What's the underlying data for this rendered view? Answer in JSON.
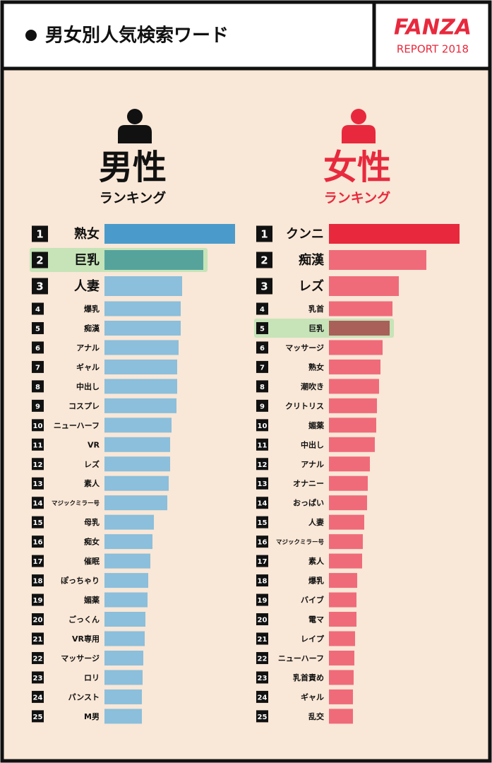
{
  "header": {
    "title": "男女別人気検索ワード",
    "brand": "FANZA",
    "report": "REPORT 2018"
  },
  "chart_data": [
    {
      "type": "bar",
      "title": "男性",
      "subtitle": "ランキング",
      "highlight_index": 1,
      "ranks": [
        1,
        2,
        3,
        4,
        5,
        6,
        7,
        8,
        9,
        10,
        11,
        12,
        13,
        14,
        15,
        16,
        17,
        18,
        19,
        20,
        21,
        22,
        23,
        24,
        25
      ],
      "categories": [
        "熟女",
        "巨乳",
        "人妻",
        "爆乳",
        "痴漢",
        "アナル",
        "ギャル",
        "中出し",
        "コスプレ",
        "ニューハーフ",
        "VR",
        "レズ",
        "素人",
        "マジックミラー号",
        "母乳",
        "痴女",
        "催眠",
        "ぽっちゃり",
        "媚薬",
        "ごっくん",
        "VR専用",
        "マッサージ",
        "ロリ",
        "パンスト",
        "M男"
      ],
      "values": [
        185,
        140,
        110,
        108,
        108,
        105,
        103,
        103,
        102,
        95,
        93,
        93,
        91,
        89,
        70,
        68,
        65,
        62,
        61,
        58,
        57,
        55,
        54,
        53,
        53
      ],
      "colors": [
        "#4a9bcb",
        "#56a39c",
        "#8bbfdb",
        "#8bbfdb",
        "#8bbfdb",
        "#8bbfdb",
        "#8bbfdb",
        "#8bbfdb",
        "#8bbfdb",
        "#8bbfdb",
        "#8bbfdb",
        "#8bbfdb",
        "#8bbfdb",
        "#8bbfdb",
        "#8bbfdb",
        "#8bbfdb",
        "#8bbfdb",
        "#8bbfdb",
        "#8bbfdb",
        "#8bbfdb",
        "#8bbfdb",
        "#8bbfdb",
        "#8bbfdb",
        "#8bbfdb",
        "#8bbfdb"
      ],
      "title_color": "#111111"
    },
    {
      "type": "bar",
      "title": "女性",
      "subtitle": "ランキング",
      "highlight_index": 4,
      "ranks": [
        1,
        2,
        3,
        4,
        5,
        6,
        7,
        8,
        9,
        10,
        11,
        12,
        13,
        14,
        15,
        16,
        17,
        18,
        19,
        20,
        21,
        22,
        23,
        24,
        25
      ],
      "categories": [
        "クンニ",
        "痴漢",
        "レズ",
        "乳首",
        "巨乳",
        "マッサージ",
        "熟女",
        "潮吹き",
        "クリトリス",
        "媚薬",
        "中出し",
        "アナル",
        "オナニー",
        "おっぱい",
        "人妻",
        "マジックミラー号",
        "素人",
        "爆乳",
        "バイブ",
        "電マ",
        "レイプ",
        "ニューハーフ",
        "乳首責め",
        "ギャル",
        "乱交"
      ],
      "values": [
        185,
        138,
        99,
        90,
        86,
        76,
        73,
        71,
        68,
        67,
        65,
        58,
        55,
        54,
        50,
        48,
        47,
        40,
        39,
        39,
        37,
        36,
        35,
        34,
        34
      ],
      "colors": [
        "#e8293d",
        "#ef6b7a",
        "#ef6b7a",
        "#ef6b7a",
        "#a86058",
        "#ef6b7a",
        "#ef6b7a",
        "#ef6b7a",
        "#ef6b7a",
        "#ef6b7a",
        "#ef6b7a",
        "#ef6b7a",
        "#ef6b7a",
        "#ef6b7a",
        "#ef6b7a",
        "#ef6b7a",
        "#ef6b7a",
        "#ef6b7a",
        "#ef6b7a",
        "#ef6b7a",
        "#ef6b7a",
        "#ef6b7a",
        "#ef6b7a",
        "#ef6b7a",
        "#ef6b7a"
      ],
      "title_color": "#e8293d"
    }
  ]
}
